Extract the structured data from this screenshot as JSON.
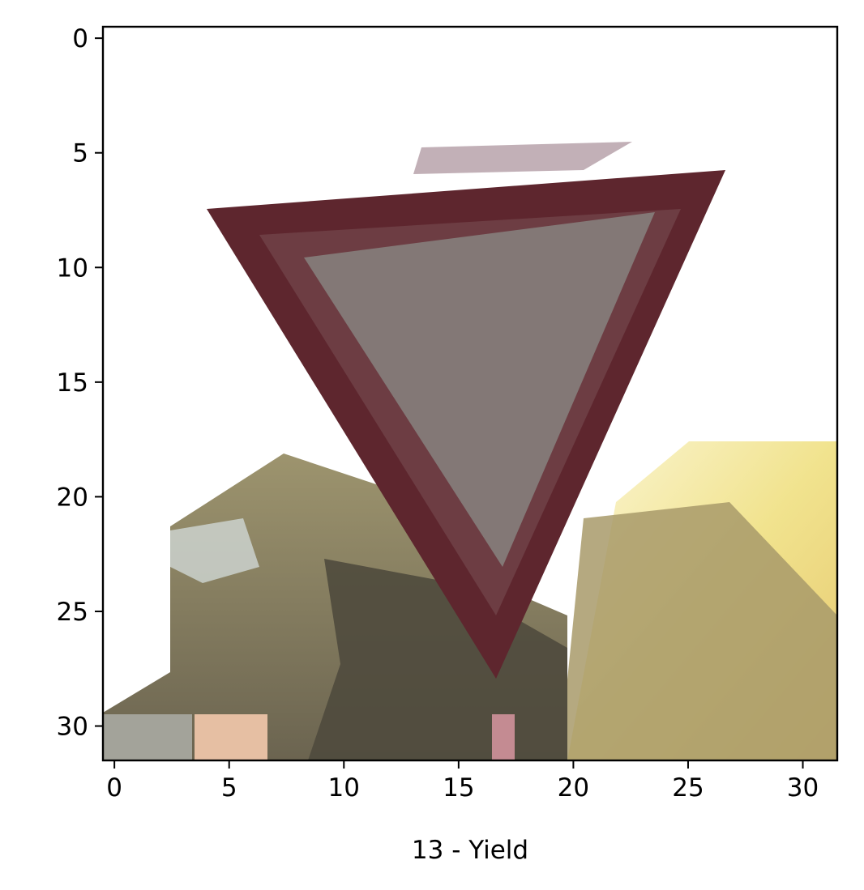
{
  "chart_data": {
    "type": "image",
    "xlabel": "13 - Yield",
    "ylabel": "",
    "xlim": [
      -0.5,
      31.5
    ],
    "ylim": [
      31.5,
      -0.5
    ],
    "x_ticks": [
      0,
      5,
      10,
      15,
      20,
      25,
      30
    ],
    "y_ticks": [
      0,
      5,
      10,
      15,
      20,
      25,
      30
    ],
    "image_size": [
      32,
      32
    ],
    "content": "yield-traffic-sign"
  },
  "colors": {
    "sign_border": "#5e262e",
    "sign_fill": "#837876",
    "sky": "#ffffff",
    "foliage_yellow": "#e9d582",
    "foliage_olive": "#857a55",
    "ground_dark": "#4a463c"
  }
}
